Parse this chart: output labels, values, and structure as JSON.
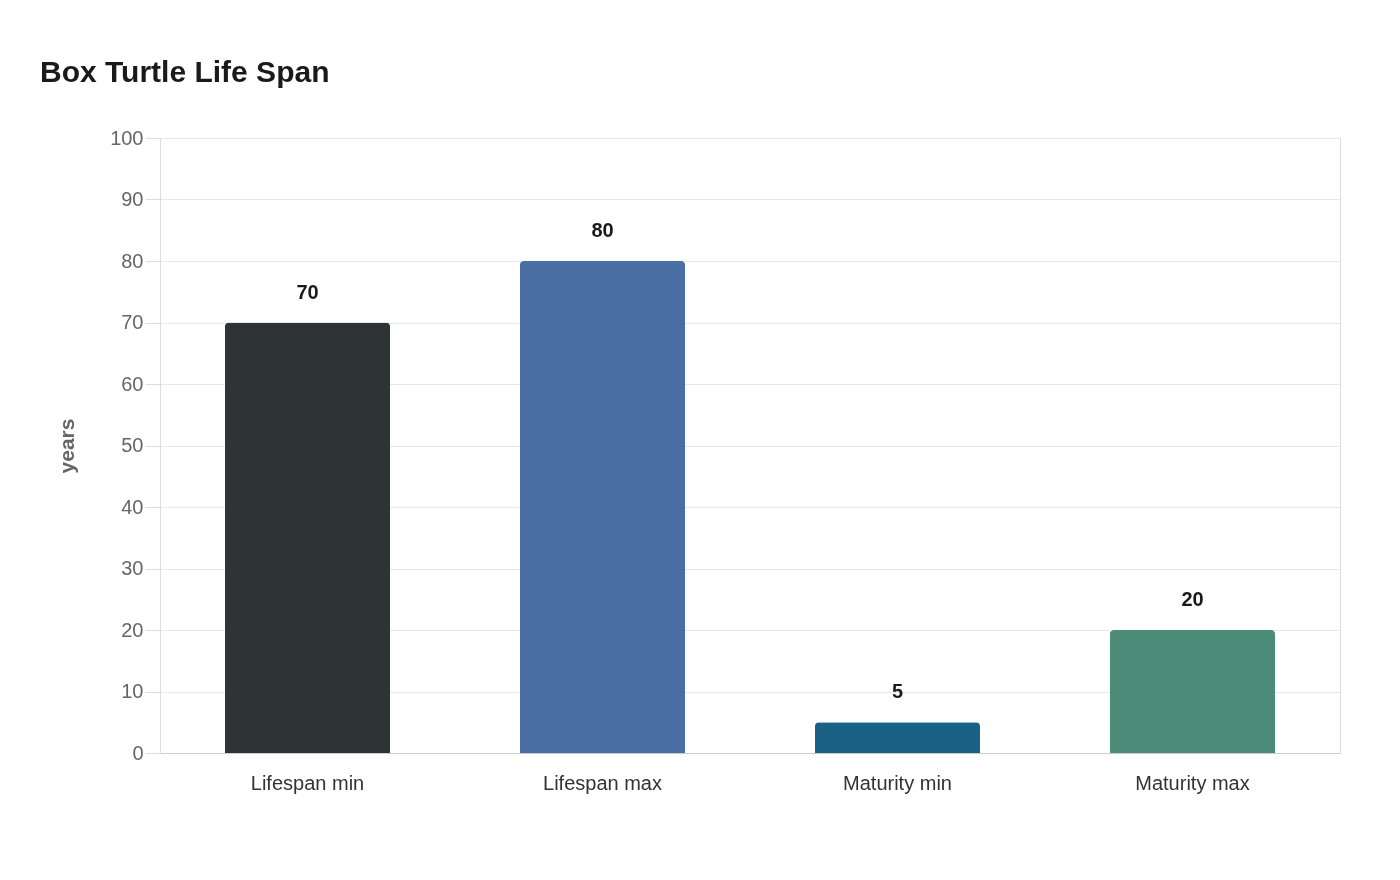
{
  "chart_data": {
    "type": "bar",
    "title": "Box Turtle Life Span",
    "ylabel": "years",
    "categories": [
      "Lifespan min",
      "Lifespan max",
      "Maturity min",
      "Maturity max"
    ],
    "values": [
      70,
      80,
      5,
      20
    ],
    "colors": [
      "#2e3436",
      "#4a6fa5",
      "#1a6186",
      "#4e8c7a"
    ],
    "ylim": [
      0,
      100
    ],
    "yticks": [
      0,
      10,
      20,
      30,
      40,
      50,
      60,
      70,
      80,
      90,
      100
    ],
    "grid": "y",
    "data_labels": true,
    "legend": false
  }
}
